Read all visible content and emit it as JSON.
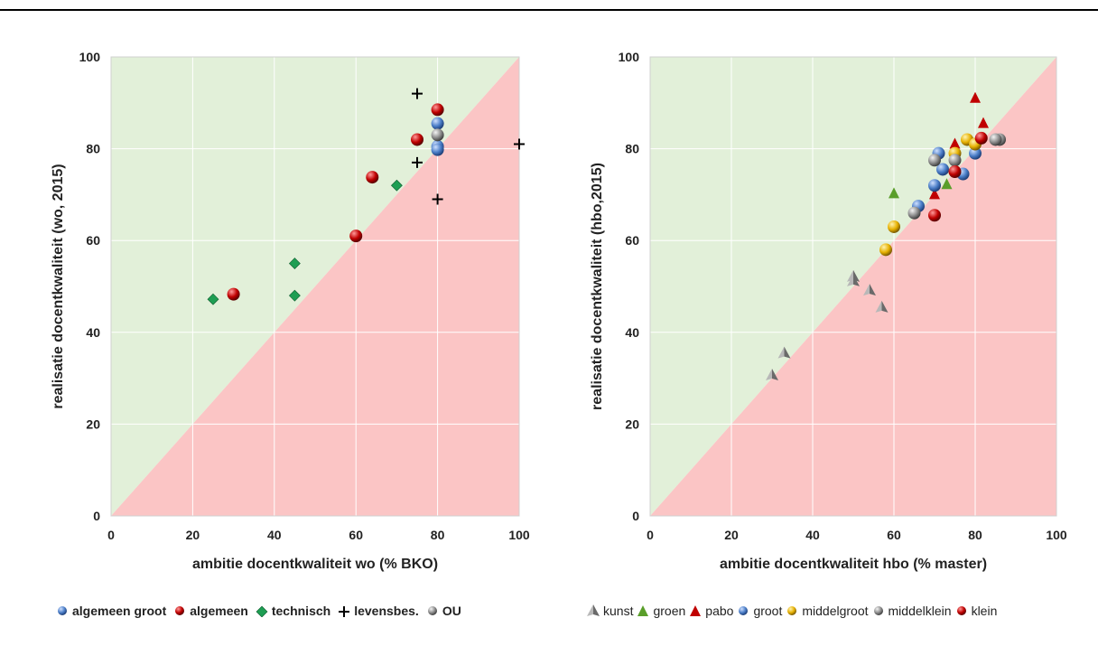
{
  "chart_data": [
    {
      "type": "scatter",
      "xlabel": "ambitie docentkwaliteit wo (% BKO)",
      "ylabel": "realisatie docentkwaliteit (wo, 2015)",
      "xlim": [
        0,
        100
      ],
      "ylim": [
        0,
        100
      ],
      "x_ticks": [
        "0",
        "20",
        "40",
        "60",
        "80",
        "100"
      ],
      "y_ticks": [
        "0",
        "20",
        "40",
        "60",
        "80",
        "100"
      ],
      "grid": true,
      "background_regions": [
        {
          "region": "above-diagonal",
          "color": "#e2f0d9"
        },
        {
          "region": "below-diagonal",
          "color": "#fbc5c5"
        }
      ],
      "legend_position": "bottom",
      "series": [
        {
          "name": "algemeen groot",
          "marker": "sphere",
          "color": "#4a7dc7",
          "points": [
            [
              80,
              85.5
            ],
            [
              80,
              80.5
            ],
            [
              80,
              79.8
            ]
          ]
        },
        {
          "name": "algemeen",
          "marker": "sphere",
          "color": "#c00000",
          "points": [
            [
              30,
              48.3
            ],
            [
              60,
              61
            ],
            [
              64,
              73.8
            ],
            [
              75,
              82
            ],
            [
              80,
              88.5
            ]
          ]
        },
        {
          "name": "technisch",
          "marker": "diamond",
          "color": "#1e9e53",
          "points": [
            [
              25,
              47.2
            ],
            [
              45,
              55
            ],
            [
              45,
              48
            ],
            [
              70,
              72
            ]
          ]
        },
        {
          "name": "levensbes.",
          "marker": "plus",
          "color": "#000000",
          "points": [
            [
              75,
              92
            ],
            [
              75,
              77
            ],
            [
              80,
              69
            ],
            [
              100,
              81
            ]
          ]
        },
        {
          "name": "OU",
          "marker": "sphere",
          "color": "#8c8c8c",
          "points": [
            [
              80,
              83
            ]
          ]
        }
      ]
    },
    {
      "type": "scatter",
      "xlabel": "ambitie docentkwaliteit hbo (% master)",
      "ylabel": "realisatie docentkwaliteit (hbo,2015)",
      "xlim": [
        0,
        100
      ],
      "ylim": [
        0,
        100
      ],
      "x_ticks": [
        "0",
        "20",
        "40",
        "60",
        "80",
        "100"
      ],
      "y_ticks": [
        "0",
        "20",
        "40",
        "60",
        "80",
        "100"
      ],
      "grid": true,
      "background_regions": [
        {
          "region": "above-diagonal",
          "color": "#e2f0d9"
        },
        {
          "region": "below-diagonal",
          "color": "#fbc5c5"
        }
      ],
      "legend_position": "bottom",
      "series": [
        {
          "name": "kunst",
          "marker": "pyramid",
          "color": "#8c8c8c",
          "points": [
            [
              30,
              30.5
            ],
            [
              33,
              35.3
            ],
            [
              50,
              52
            ],
            [
              50,
              51
            ],
            [
              54,
              49
            ],
            [
              57,
              45.3
            ]
          ]
        },
        {
          "name": "groen",
          "marker": "triangle",
          "color": "#5a9e2a",
          "points": [
            [
              60,
              70.2
            ],
            [
              73,
              72.2
            ]
          ]
        },
        {
          "name": "pabo",
          "marker": "triangle",
          "color": "#c00000",
          "points": [
            [
              80,
              91
            ],
            [
              82,
              85.5
            ],
            [
              75,
              81
            ],
            [
              70,
              70
            ]
          ]
        },
        {
          "name": "groot",
          "marker": "sphere",
          "color": "#4a7dc7",
          "points": [
            [
              71,
              79
            ],
            [
              72,
              75.5
            ],
            [
              70,
              72
            ],
            [
              77,
              74.5
            ],
            [
              80,
              79
            ],
            [
              66,
              67.5
            ]
          ]
        },
        {
          "name": "middelgroot",
          "marker": "sphere",
          "color": "#e6b000",
          "points": [
            [
              58,
              58
            ],
            [
              60,
              63
            ],
            [
              78,
              82
            ],
            [
              75,
              79
            ],
            [
              80,
              81
            ]
          ]
        },
        {
          "name": "middelklein",
          "marker": "sphere",
          "color": "#8c8c8c",
          "points": [
            [
              70,
              77.5
            ],
            [
              75,
              77.5
            ],
            [
              65,
              66
            ],
            [
              86,
              82
            ],
            [
              85,
              82
            ]
          ]
        },
        {
          "name": "klein",
          "marker": "sphere",
          "color": "#c00000",
          "points": [
            [
              70,
              65.5
            ],
            [
              75,
              75
            ],
            [
              81.5,
              82.3
            ]
          ]
        }
      ]
    }
  ]
}
